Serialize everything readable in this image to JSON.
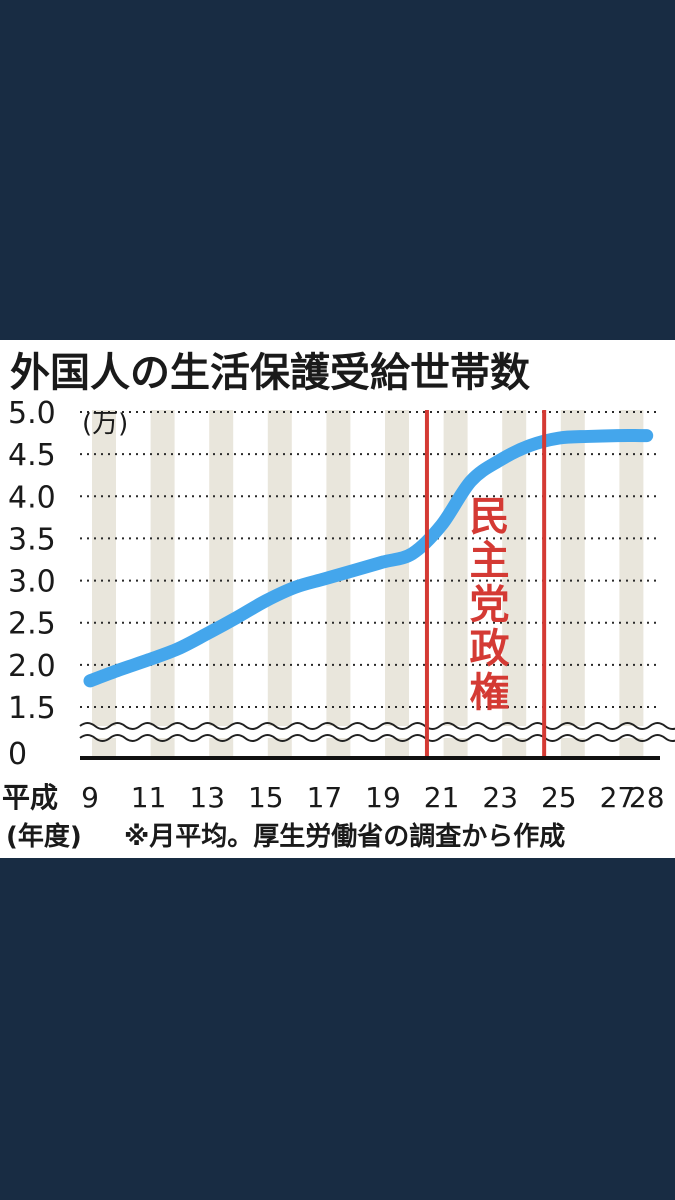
{
  "chart_data": {
    "type": "line",
    "title": "外国人の生活保護受給世帯数",
    "yunit": "(万)",
    "xlabel_prefix": "平成",
    "xunit": "(年度)",
    "note": "※月平均。厚生労働省の調査から作成",
    "x": [
      9,
      10,
      11,
      12,
      13,
      14,
      15,
      16,
      17,
      18,
      19,
      20,
      21,
      22,
      23,
      24,
      25,
      26,
      27,
      28
    ],
    "values": [
      1.81,
      1.94,
      2.06,
      2.19,
      2.37,
      2.56,
      2.76,
      2.92,
      3.02,
      3.12,
      3.22,
      3.32,
      3.66,
      4.18,
      4.43,
      4.6,
      4.69,
      4.71,
      4.72,
      4.72
    ],
    "xticks": [
      9,
      11,
      13,
      15,
      17,
      19,
      21,
      23,
      25,
      27,
      28
    ],
    "yticks": [
      0,
      1.5,
      2.0,
      2.5,
      3.0,
      3.5,
      4.0,
      4.5,
      5.0
    ],
    "ytick_labels": [
      "0",
      "1.5",
      "2.0",
      "2.5",
      "3.0",
      "3.5",
      "4.0",
      "4.5",
      "5.0"
    ],
    "ylim": [
      1.5,
      5.0
    ],
    "axis_break": true,
    "grid": true,
    "line_color": "#44a6ec",
    "marker_color": "#d43a34",
    "annotation": {
      "label": "民主党政権",
      "label_chars": [
        "民",
        "主",
        "党",
        "政",
        "権"
      ],
      "start_x": 20.5,
      "end_x": 24.5
    }
  }
}
